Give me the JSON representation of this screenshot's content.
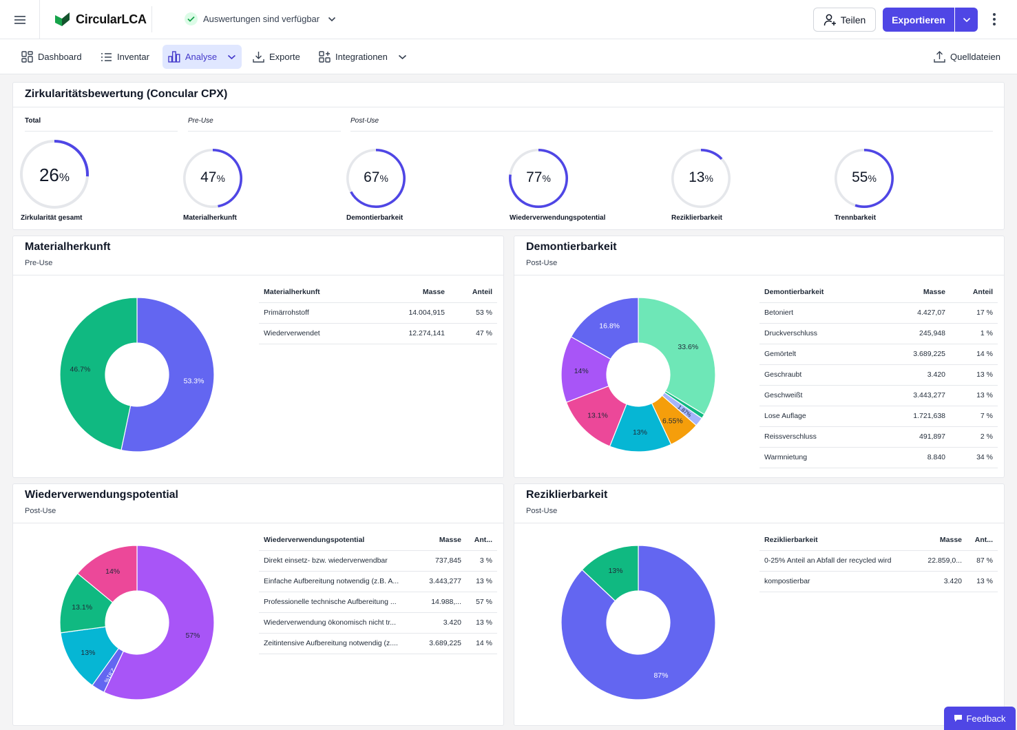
{
  "app": {
    "name": "CircularLCA",
    "brand_color": "#16a34a",
    "accent": "#4f46e5"
  },
  "status": {
    "text": "Auswertungen sind verfügbar"
  },
  "actions": {
    "share": "Teilen",
    "export": "Exportieren"
  },
  "nav": {
    "items": [
      {
        "label": "Dashboard",
        "icon": "dashboard-icon"
      },
      {
        "label": "Inventar",
        "icon": "list-icon"
      },
      {
        "label": "Analyse",
        "icon": "bar-chart-icon",
        "active": true
      },
      {
        "label": "Exporte",
        "icon": "download-icon"
      },
      {
        "label": "Integrationen",
        "icon": "integrations-icon"
      }
    ],
    "right": "Quelldateien"
  },
  "overview": {
    "title": "Zirkularitätsbewertung (Concular CPX)",
    "groups": {
      "total": "Total",
      "pre": "Pre-Use",
      "post": "Post-Use"
    },
    "gauges": [
      {
        "value": 26,
        "unit": "%",
        "label": "Zirkularität gesamt"
      },
      {
        "value": 47,
        "unit": "%",
        "label": "Materialherkunft"
      },
      {
        "value": 67,
        "unit": "%",
        "label": "Demontierbarkeit"
      },
      {
        "value": 77,
        "unit": "%",
        "label": "Wiederverwendungspotential"
      },
      {
        "value": 13,
        "unit": "%",
        "label": "Reziklierbarkeit"
      },
      {
        "value": 55,
        "unit": "%",
        "label": "Trennbarkeit"
      }
    ]
  },
  "panels": [
    {
      "title": "Materialherkunft",
      "subtitle": "Pre-Use",
      "headers": [
        "Materialherkunft",
        "Masse",
        "Anteil"
      ],
      "rows": [
        [
          "Primärrohstoff",
          "14.004,915",
          "53 %"
        ],
        [
          "Wiederverwendet",
          "12.274,141",
          "47 %"
        ]
      ]
    },
    {
      "title": "Demontierbarkeit",
      "subtitle": "Post-Use",
      "headers": [
        "Demontierbarkeit",
        "Masse",
        "Anteil"
      ],
      "rows": [
        [
          "Betoniert",
          "4.427,07",
          "17 %"
        ],
        [
          "Druckverschluss",
          "245,948",
          "1 %"
        ],
        [
          "Gemörtelt",
          "3.689,225",
          "14 %"
        ],
        [
          "Geschraubt",
          "3.420",
          "13 %"
        ],
        [
          "Geschweißt",
          "3.443,277",
          "13 %"
        ],
        [
          "Lose Auflage",
          "1.721,638",
          "7 %"
        ],
        [
          "Reissverschluss",
          "491,897",
          "2 %"
        ],
        [
          "Warmnietung",
          "8.840",
          "34 %"
        ]
      ]
    },
    {
      "title": "Wiederverwendungspotential",
      "subtitle": "Post-Use",
      "headers": [
        "Wiederverwendungspotential",
        "Masse",
        "Ant..."
      ],
      "rows": [
        [
          "Direkt einsetz- bzw. wiederverwendbar",
          "737,845",
          "3 %"
        ],
        [
          "Einfache Aufbereitung notwendig (z.B. A...",
          "3.443,277",
          "13 %"
        ],
        [
          "Professionelle technische Aufbereitung ...",
          "14.988,...",
          "57 %"
        ],
        [
          "Wiederverwendung ökonomisch nicht tr...",
          "3.420",
          "13 %"
        ],
        [
          "Zeitintensive Aufbereitung notwendig (z....",
          "3.689,225",
          "14 %"
        ]
      ]
    },
    {
      "title": "Reziklierbarkeit",
      "subtitle": "Post-Use",
      "headers": [
        "Reziklierbarkeit",
        "Masse",
        "Ant..."
      ],
      "rows": [
        [
          "0-25% Anteil an Abfall der recycled wird",
          "22.859,0...",
          "87 %"
        ],
        [
          "kompostierbar",
          "3.420",
          "13 %"
        ]
      ]
    }
  ],
  "chart_data": [
    {
      "type": "pie",
      "title": "Materialherkunft",
      "donut": true,
      "slices": [
        {
          "label": "53.3%",
          "value": 53.3,
          "color": "#6366f1",
          "text": "#ffffff"
        },
        {
          "label": "46.7%",
          "value": 46.7,
          "color": "#10b981",
          "text": "#1f2937"
        }
      ]
    },
    {
      "type": "pie",
      "title": "Demontierbarkeit",
      "donut": true,
      "slices": [
        {
          "label": "33.6%",
          "value": 33.6,
          "color": "#6ee7b7",
          "text": "#1f2937"
        },
        {
          "label": "",
          "value": 0.93,
          "color": "#10b981",
          "text": "#1f2937"
        },
        {
          "label": "1.87%",
          "value": 1.87,
          "color": "#a5b4fc",
          "text": "#1f2937"
        },
        {
          "label": "6.55%",
          "value": 6.55,
          "color": "#f59e0b",
          "text": "#1f2937"
        },
        {
          "label": "13%",
          "value": 13.0,
          "color": "#06b6d4",
          "text": "#1f2937"
        },
        {
          "label": "13.1%",
          "value": 13.1,
          "color": "#ec4899",
          "text": "#1f2937"
        },
        {
          "label": "14%",
          "value": 14.0,
          "color": "#a855f7",
          "text": "#1f2937"
        },
        {
          "label": "16.8%",
          "value": 16.8,
          "color": "#6366f1",
          "text": "#ffffff"
        }
      ]
    },
    {
      "type": "pie",
      "title": "Wiederverwendungspotential",
      "donut": true,
      "slices": [
        {
          "label": "57%",
          "value": 57.0,
          "color": "#a855f7",
          "text": "#1f2937"
        },
        {
          "label": "2.81%",
          "value": 2.81,
          "color": "#6366f1",
          "text": "#ffffff"
        },
        {
          "label": "13%",
          "value": 13.0,
          "color": "#06b6d4",
          "text": "#1f2937"
        },
        {
          "label": "13.1%",
          "value": 13.1,
          "color": "#10b981",
          "text": "#1f2937"
        },
        {
          "label": "14%",
          "value": 14.0,
          "color": "#ec4899",
          "text": "#1f2937"
        }
      ]
    },
    {
      "type": "pie",
      "title": "Reziklierbarkeit",
      "donut": true,
      "slices": [
        {
          "label": "87%",
          "value": 87.0,
          "color": "#6366f1",
          "text": "#ffffff"
        },
        {
          "label": "13%",
          "value": 13.0,
          "color": "#10b981",
          "text": "#1f2937"
        }
      ]
    }
  ],
  "feedback": "Feedback"
}
